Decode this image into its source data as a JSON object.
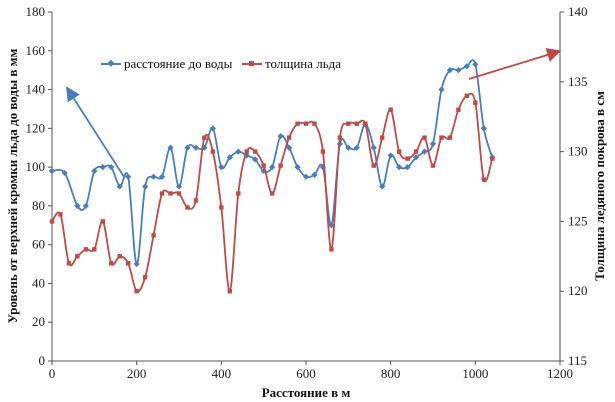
{
  "chart_data": {
    "type": "line",
    "xlabel": "Расстояние в м",
    "ylabel": "Уровень от верхней кромки льда до воды в мм",
    "y2label": "Толщина ледяного покрова в см",
    "xlim": [
      0,
      1200
    ],
    "ylim": [
      0,
      180
    ],
    "y2lim": [
      115,
      140
    ],
    "x_ticks": [
      0,
      200,
      400,
      600,
      800,
      1000,
      1200
    ],
    "y_ticks": [
      0,
      20,
      40,
      60,
      80,
      100,
      120,
      140,
      160,
      180
    ],
    "y2_ticks": [
      115,
      120,
      125,
      130,
      135,
      140
    ],
    "grid": false,
    "legend_position": "top-center",
    "series": [
      {
        "name": "расстояние до воды",
        "axis": "left",
        "color": "#4a7ebb",
        "marker": "diamond",
        "points": [
          [
            0,
            98
          ],
          [
            30,
            97
          ],
          [
            60,
            80
          ],
          [
            80,
            80
          ],
          [
            100,
            98
          ],
          [
            120,
            100
          ],
          [
            140,
            100
          ],
          [
            160,
            90
          ],
          [
            180,
            95
          ],
          [
            200,
            50
          ],
          [
            220,
            90
          ],
          [
            240,
            95
          ],
          [
            260,
            95
          ],
          [
            280,
            110
          ],
          [
            300,
            90
          ],
          [
            320,
            110
          ],
          [
            340,
            110
          ],
          [
            360,
            110
          ],
          [
            380,
            120
          ],
          [
            400,
            100
          ],
          [
            420,
            105
          ],
          [
            440,
            108
          ],
          [
            460,
            106
          ],
          [
            480,
            104
          ],
          [
            500,
            98
          ],
          [
            520,
            100
          ],
          [
            540,
            116
          ],
          [
            560,
            110
          ],
          [
            580,
            100
          ],
          [
            600,
            95
          ],
          [
            620,
            96
          ],
          [
            640,
            100
          ],
          [
            660,
            70
          ],
          [
            680,
            112
          ],
          [
            700,
            110
          ],
          [
            720,
            110
          ],
          [
            740,
            122
          ],
          [
            760,
            110
          ],
          [
            780,
            90
          ],
          [
            800,
            106
          ],
          [
            820,
            100
          ],
          [
            840,
            100
          ],
          [
            860,
            105
          ],
          [
            880,
            108
          ],
          [
            900,
            112
          ],
          [
            920,
            140
          ],
          [
            940,
            150
          ],
          [
            960,
            150
          ],
          [
            980,
            152
          ],
          [
            1000,
            153
          ],
          [
            1020,
            120
          ],
          [
            1040,
            105
          ]
        ]
      },
      {
        "name": "толщина льда",
        "axis": "right",
        "color": "#be4b48",
        "marker": "square",
        "points": [
          [
            0,
            125
          ],
          [
            20,
            125.5
          ],
          [
            40,
            122
          ],
          [
            60,
            122.5
          ],
          [
            80,
            123
          ],
          [
            100,
            123
          ],
          [
            120,
            125
          ],
          [
            140,
            122
          ],
          [
            160,
            122.5
          ],
          [
            180,
            122
          ],
          [
            200,
            120
          ],
          [
            220,
            121
          ],
          [
            240,
            124
          ],
          [
            260,
            127
          ],
          [
            280,
            127
          ],
          [
            300,
            127
          ],
          [
            320,
            126
          ],
          [
            340,
            126.5
          ],
          [
            360,
            131
          ],
          [
            380,
            130
          ],
          [
            400,
            126
          ],
          [
            420,
            120
          ],
          [
            440,
            127
          ],
          [
            460,
            130
          ],
          [
            480,
            130
          ],
          [
            500,
            129
          ],
          [
            520,
            127
          ],
          [
            540,
            129
          ],
          [
            560,
            131
          ],
          [
            580,
            132
          ],
          [
            600,
            132
          ],
          [
            620,
            132
          ],
          [
            640,
            130
          ],
          [
            660,
            123
          ],
          [
            680,
            131
          ],
          [
            700,
            132
          ],
          [
            720,
            132
          ],
          [
            740,
            132
          ],
          [
            760,
            129
          ],
          [
            780,
            131
          ],
          [
            800,
            133
          ],
          [
            820,
            130
          ],
          [
            840,
            129.5
          ],
          [
            860,
            130
          ],
          [
            880,
            131
          ],
          [
            900,
            129
          ],
          [
            920,
            131
          ],
          [
            940,
            131
          ],
          [
            960,
            133
          ],
          [
            980,
            134
          ],
          [
            1000,
            133.5
          ],
          [
            1020,
            128
          ],
          [
            1040,
            129.5
          ]
        ]
      }
    ],
    "annotations": [
      {
        "type": "arrow",
        "color": "#4a7ebb",
        "from": [
          170,
          95
        ],
        "to": [
          35,
          141
        ],
        "axis": "left"
      },
      {
        "type": "arrow",
        "color": "#be4b48",
        "from": [
          985,
          135.2
        ],
        "to": [
          1200,
          137.2
        ],
        "axis": "right"
      }
    ]
  }
}
